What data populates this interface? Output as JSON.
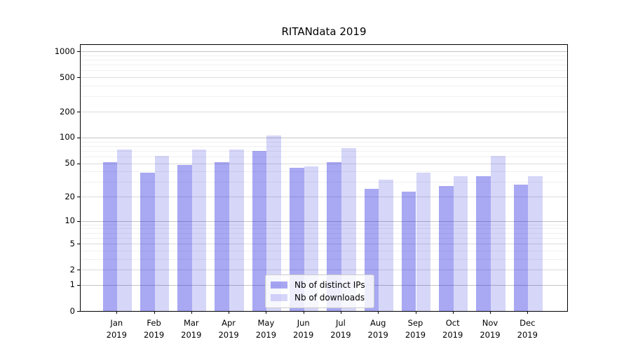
{
  "chart_data": {
    "type": "bar",
    "title": "RITANdata 2019",
    "categories": [
      "Jan 2019",
      "Feb 2019",
      "Mar 2019",
      "Apr 2019",
      "May 2019",
      "Jun 2019",
      "Jul 2019",
      "Aug 2019",
      "Sep 2019",
      "Oct 2019",
      "Nov 2019",
      "Dec 2019"
    ],
    "series": [
      {
        "name": "Nb of distinct IPs",
        "color": "rgba(0,0,220,0.34)",
        "color_hex_on_white": "#a8a8f3",
        "values": [
          51,
          39,
          48,
          51,
          70,
          44,
          51,
          25,
          23,
          27,
          35,
          28
        ]
      },
      {
        "name": "Nb of downloads",
        "color": "rgba(0,0,220,0.16)",
        "color_hex_on_white": "#d8d8fa",
        "values": [
          72,
          61,
          73,
          72,
          105,
          46,
          75,
          32,
          39,
          35,
          61,
          35
        ]
      }
    ],
    "yscale": "log1p",
    "yticks": [
      0,
      1,
      2,
      5,
      10,
      20,
      50,
      100,
      200,
      500,
      1000
    ],
    "ylim": [
      0,
      1160
    ],
    "xlabel": "",
    "ylabel": "",
    "grid": true,
    "legend_position": "lower center, inside plot"
  }
}
